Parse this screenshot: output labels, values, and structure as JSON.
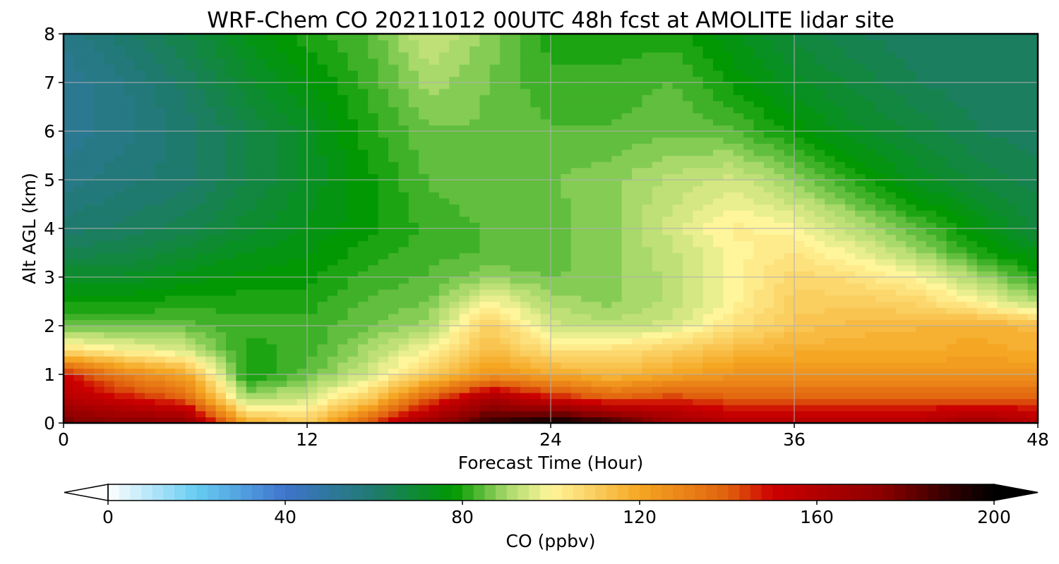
{
  "chart_data": {
    "type": "heatmap",
    "title": "WRF-Chem CO  20211012 00UTC 48h fcst at AMOLITE lidar site",
    "xlabel": "Forecast Time (Hour)",
    "ylabel": "Alt AGL (km)",
    "xlim": [
      0,
      48
    ],
    "ylim": [
      0,
      8
    ],
    "x_ticks": [
      0,
      12,
      24,
      36,
      48
    ],
    "y_ticks": [
      0,
      1,
      2,
      3,
      4,
      5,
      6,
      7,
      8
    ],
    "grid": true,
    "x": [
      0,
      3,
      6,
      9,
      12,
      15,
      18,
      21,
      24,
      27,
      30,
      33,
      36,
      39,
      42,
      45,
      48
    ],
    "y": [
      0,
      0.5,
      1,
      1.5,
      2,
      2.5,
      3,
      3.5,
      4,
      5,
      6,
      7,
      8
    ],
    "z_units": "ppbv",
    "z": [
      [
        180,
        175,
        175,
        120,
        110,
        140,
        170,
        190,
        200,
        190,
        170,
        160,
        160,
        160,
        160,
        170,
        160
      ],
      [
        160,
        150,
        140,
        90,
        95,
        110,
        140,
        165,
        150,
        140,
        145,
        140,
        140,
        140,
        140,
        140,
        140
      ],
      [
        150,
        130,
        120,
        78,
        85,
        95,
        110,
        125,
        120,
        115,
        120,
        125,
        125,
        125,
        125,
        125,
        125
      ],
      [
        105,
        100,
        95,
        80,
        82,
        90,
        100,
        115,
        105,
        105,
        110,
        115,
        118,
        118,
        118,
        120,
        118
      ],
      [
        85,
        85,
        85,
        82,
        82,
        86,
        90,
        110,
        95,
        92,
        95,
        105,
        112,
        115,
        116,
        118,
        115
      ],
      [
        78,
        78,
        80,
        80,
        80,
        84,
        86,
        100,
        90,
        88,
        92,
        100,
        110,
        110,
        108,
        100,
        90
      ],
      [
        72,
        72,
        75,
        77,
        78,
        82,
        84,
        88,
        86,
        88,
        92,
        100,
        108,
        105,
        100,
        90,
        80
      ],
      [
        65,
        66,
        70,
        74,
        76,
        80,
        83,
        84,
        85,
        88,
        93,
        100,
        104,
        98,
        90,
        80,
        74
      ],
      [
        60,
        62,
        65,
        70,
        74,
        78,
        82,
        84,
        85,
        88,
        95,
        102,
        100,
        92,
        84,
        76,
        68
      ],
      [
        55,
        58,
        60,
        66,
        72,
        78,
        84,
        86,
        86,
        88,
        92,
        95,
        88,
        80,
        73,
        68,
        65
      ],
      [
        52,
        55,
        60,
        66,
        72,
        80,
        86,
        86,
        84,
        84,
        86,
        84,
        78,
        72,
        68,
        64,
        62
      ],
      [
        52,
        56,
        62,
        70,
        76,
        82,
        90,
        86,
        82,
        82,
        84,
        78,
        72,
        68,
        64,
        62,
        62
      ],
      [
        54,
        60,
        66,
        74,
        80,
        84,
        94,
        88,
        80,
        80,
        80,
        74,
        68,
        64,
        62,
        62,
        64
      ]
    ],
    "colorbar": {
      "label": "CO  (ppbv)",
      "min": 0,
      "max": 200,
      "ticks": [
        0,
        40,
        80,
        120,
        160,
        200
      ],
      "extend": "both",
      "colors": {
        "0": "#ffffff",
        "20": "#66ccf2",
        "40": "#3f74cc",
        "60": "#1f7a6e",
        "78": "#009900",
        "90": "#a8d96a",
        "100": "#fff59a",
        "120": "#f5a623",
        "140": "#e0600e",
        "150": "#cc0000",
        "175": "#8b0000",
        "190": "#300000",
        "200": "#000000"
      }
    }
  }
}
